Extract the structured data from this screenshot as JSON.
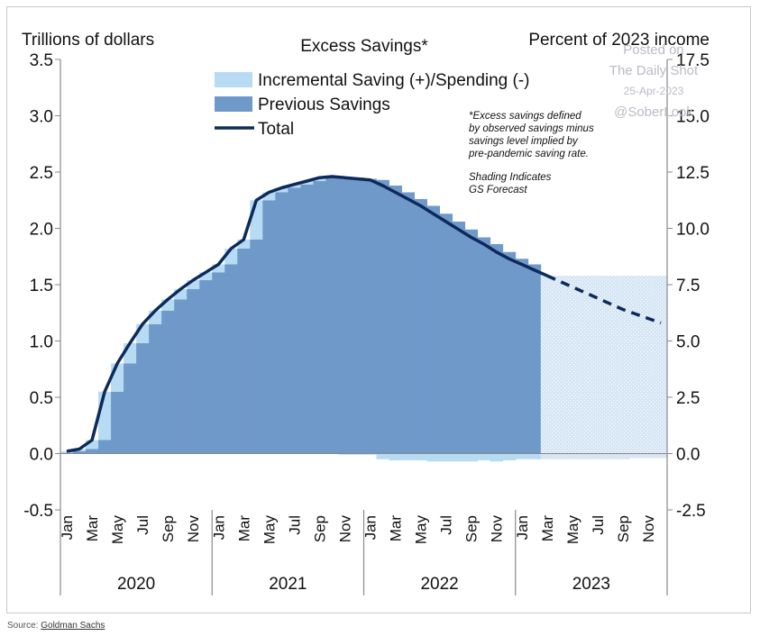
{
  "chart_data": {
    "type": "bar",
    "title": "Excess Savings*",
    "ylabel_left": "Trillions of dollars",
    "ylabel_right": "Percent of 2023 income",
    "ylim_left": [
      -0.5,
      3.5
    ],
    "ylim_right": [
      -2.5,
      17.5
    ],
    "yticks_left": [
      "3.5",
      "3.0",
      "2.5",
      "2.0",
      "1.5",
      "1.0",
      "0.5",
      "0.0",
      "-0.5"
    ],
    "yticks_right": [
      "17.5",
      "15.0",
      "12.5",
      "10.0",
      "7.5",
      "5.0",
      "2.5",
      "0.0",
      "-2.5"
    ],
    "month_labels": [
      "Jan",
      "Mar",
      "May",
      "Jul",
      "Sep",
      "Nov"
    ],
    "years": [
      "2020",
      "2021",
      "2022",
      "2023"
    ],
    "forecast_start_index": 38,
    "legend": [
      {
        "label": "Incremental Saving (+)/Spending (-)",
        "color": "#b7dbf3",
        "kind": "bar"
      },
      {
        "label": "Previous Savings",
        "color": "#6f99c9",
        "kind": "bar"
      },
      {
        "label": "Total",
        "color": "#0d2a5c",
        "kind": "line"
      }
    ],
    "series": [
      {
        "name": "Total",
        "values": [
          0.02,
          0.04,
          0.12,
          0.55,
          0.8,
          0.98,
          1.15,
          1.27,
          1.37,
          1.46,
          1.54,
          1.61,
          1.68,
          1.82,
          1.9,
          2.25,
          2.32,
          2.36,
          2.39,
          2.42,
          2.45,
          2.46,
          2.45,
          2.44,
          2.43,
          2.38,
          2.32,
          2.26,
          2.2,
          2.13,
          2.06,
          1.99,
          1.92,
          1.86,
          1.79,
          1.73,
          1.68,
          1.63,
          1.58,
          1.53,
          1.48,
          1.43,
          1.38,
          1.33,
          1.28,
          1.24,
          1.2,
          1.16
        ]
      },
      {
        "name": "Incremental Saving (+)/Spending (-)",
        "values": [
          0.02,
          0.02,
          0.08,
          0.43,
          0.25,
          0.18,
          0.17,
          0.12,
          0.1,
          0.09,
          0.08,
          0.07,
          0.07,
          0.14,
          0.08,
          0.35,
          0.07,
          0.04,
          0.03,
          0.03,
          0.03,
          0.01,
          -0.01,
          -0.01,
          -0.01,
          -0.05,
          -0.06,
          -0.06,
          -0.06,
          -0.07,
          -0.07,
          -0.07,
          -0.07,
          -0.06,
          -0.07,
          -0.06,
          -0.05,
          -0.05,
          -0.05,
          -0.05,
          -0.05,
          -0.05,
          -0.05,
          -0.05,
          -0.05,
          -0.04,
          -0.04,
          -0.04
        ]
      }
    ],
    "annotation": {
      "definition": "*Excess savings defined\nby observed savings minus\nsavings level implied by\npre-pandemic saving rate.",
      "shading": "Shading Indicates\nGS Forecast"
    }
  },
  "watermark": {
    "line1": "Posted on",
    "line2": "The Daily Shot",
    "line3": "25-Apr-2023",
    "line4": "@SoberLook"
  },
  "source": {
    "prefix": "Source: ",
    "link": "Goldman Sachs"
  },
  "colors": {
    "incremental": "#b7dbf3",
    "previous": "#6f99c9",
    "total": "#0d2a5c",
    "axis": "#8a8a8a"
  }
}
